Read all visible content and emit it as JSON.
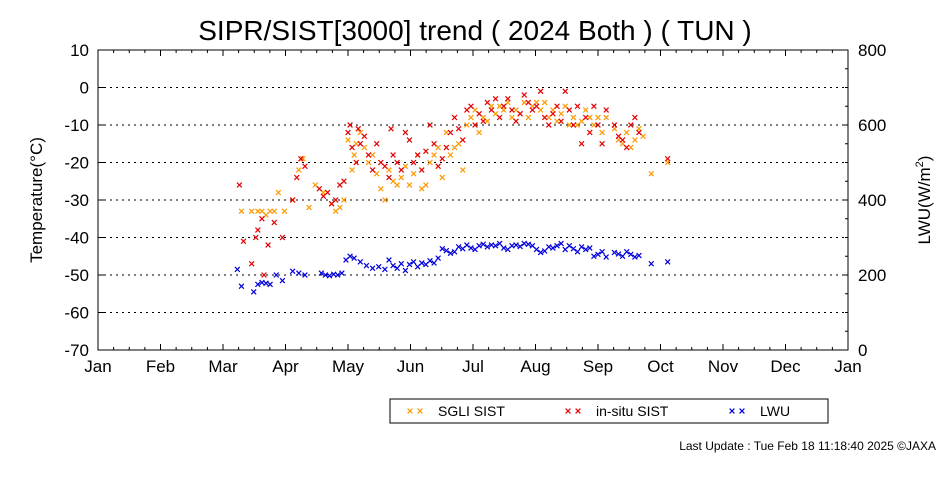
{
  "chart_data": {
    "type": "scatter",
    "title": "SIPR/SIST[3000] trend ( 2024 Both ) ( TUN )",
    "xlabel": "",
    "ylabel": "Temperature(°C)",
    "y2label": "LWU(W/m",
    "y2label_sup": "2",
    "y2label_end": ")",
    "x_ticks": [
      "Jan",
      "Feb",
      "Mar",
      "Apr",
      "May",
      "Jun",
      "Jul",
      "Aug",
      "Sep",
      "Oct",
      "Nov",
      "Dec",
      "Jan"
    ],
    "ylim": [
      -70,
      10
    ],
    "y_ticks": [
      10,
      0,
      -10,
      -20,
      -30,
      -40,
      -50,
      -60,
      -70
    ],
    "y2lim": [
      0,
      800
    ],
    "y2_ticks": [
      800,
      600,
      400,
      200,
      0
    ],
    "grid": "horizontal dotted",
    "legend_position": "bottom",
    "series": [
      {
        "name": "SGLI SIST",
        "axis": "left",
        "color": "#ff9900",
        "points": [
          [
            70,
            -33
          ],
          [
            75,
            -33
          ],
          [
            78,
            -33
          ],
          [
            80,
            -33
          ],
          [
            82,
            -34
          ],
          [
            84,
            -33
          ],
          [
            86,
            -33
          ],
          [
            88,
            -28
          ],
          [
            91,
            -33
          ],
          [
            95,
            -30
          ],
          [
            98,
            -22
          ],
          [
            100,
            -19
          ],
          [
            103,
            -32
          ],
          [
            106,
            -26
          ],
          [
            110,
            -28
          ],
          [
            114,
            -31
          ],
          [
            116,
            -33
          ],
          [
            118,
            -32
          ],
          [
            120,
            -30
          ],
          [
            122,
            -14
          ],
          [
            124,
            -22
          ],
          [
            125,
            -18
          ],
          [
            126,
            -15
          ],
          [
            128,
            -12
          ],
          [
            130,
            -16
          ],
          [
            132,
            -20
          ],
          [
            134,
            -18
          ],
          [
            136,
            -23
          ],
          [
            138,
            -27
          ],
          [
            140,
            -30
          ],
          [
            142,
            -22
          ],
          [
            144,
            -25
          ],
          [
            146,
            -26
          ],
          [
            148,
            -24
          ],
          [
            150,
            -21
          ],
          [
            152,
            -26
          ],
          [
            154,
            -23
          ],
          [
            156,
            -18
          ],
          [
            158,
            -27
          ],
          [
            160,
            -26
          ],
          [
            162,
            -20
          ],
          [
            164,
            -18
          ],
          [
            166,
            -16
          ],
          [
            168,
            -24
          ],
          [
            170,
            -12
          ],
          [
            172,
            -18
          ],
          [
            174,
            -16
          ],
          [
            176,
            -15
          ],
          [
            178,
            -22
          ],
          [
            180,
            -10
          ],
          [
            182,
            -8
          ],
          [
            184,
            -6
          ],
          [
            186,
            -12
          ],
          [
            188,
            -8
          ],
          [
            190,
            -9
          ],
          [
            192,
            -5
          ],
          [
            194,
            -7
          ],
          [
            196,
            -5
          ],
          [
            198,
            -6
          ],
          [
            200,
            -4
          ],
          [
            202,
            -8
          ],
          [
            204,
            -6
          ],
          [
            206,
            -7
          ],
          [
            208,
            -4
          ],
          [
            210,
            -8
          ],
          [
            212,
            -5
          ],
          [
            214,
            -4
          ],
          [
            216,
            -6
          ],
          [
            218,
            -4
          ],
          [
            220,
            -8
          ],
          [
            222,
            -6
          ],
          [
            224,
            -9
          ],
          [
            226,
            -7
          ],
          [
            228,
            -5
          ],
          [
            230,
            -10
          ],
          [
            232,
            -8
          ],
          [
            234,
            -10
          ],
          [
            236,
            -9
          ],
          [
            238,
            -6
          ],
          [
            240,
            -8
          ],
          [
            242,
            -10
          ],
          [
            244,
            -8
          ],
          [
            246,
            -12
          ],
          [
            248,
            -8
          ],
          [
            252,
            -11
          ],
          [
            254,
            -14
          ],
          [
            256,
            -15
          ],
          [
            258,
            -12
          ],
          [
            260,
            -16
          ],
          [
            262,
            -14
          ],
          [
            264,
            -11
          ],
          [
            266,
            -13
          ],
          [
            270,
            -23
          ],
          [
            278,
            -20
          ]
        ]
      },
      {
        "name": "in-situ SIST",
        "axis": "left",
        "color": "#e60000",
        "points": [
          [
            69,
            -26
          ],
          [
            71,
            -41
          ],
          [
            75,
            -47
          ],
          [
            77,
            -40
          ],
          [
            78,
            -38
          ],
          [
            80,
            -35
          ],
          [
            81,
            -50
          ],
          [
            83,
            -42
          ],
          [
            86,
            -36
          ],
          [
            90,
            -40
          ],
          [
            95,
            -30
          ],
          [
            97,
            -24
          ],
          [
            99,
            -19
          ],
          [
            101,
            -21
          ],
          [
            108,
            -27
          ],
          [
            110,
            -29
          ],
          [
            112,
            -28
          ],
          [
            114,
            -31
          ],
          [
            116,
            -30
          ],
          [
            118,
            -26
          ],
          [
            120,
            -25
          ],
          [
            122,
            -12
          ],
          [
            123,
            -10
          ],
          [
            124,
            -16
          ],
          [
            126,
            -20
          ],
          [
            127,
            -11
          ],
          [
            128,
            -15
          ],
          [
            130,
            -13
          ],
          [
            132,
            -18
          ],
          [
            134,
            -22
          ],
          [
            136,
            -15
          ],
          [
            138,
            -20
          ],
          [
            140,
            -21
          ],
          [
            142,
            -24
          ],
          [
            143,
            -11
          ],
          [
            144,
            -18
          ],
          [
            146,
            -20
          ],
          [
            148,
            -22
          ],
          [
            150,
            -12
          ],
          [
            152,
            -14
          ],
          [
            154,
            -20
          ],
          [
            156,
            -18
          ],
          [
            158,
            -22
          ],
          [
            160,
            -17
          ],
          [
            162,
            -10
          ],
          [
            164,
            -15
          ],
          [
            166,
            -21
          ],
          [
            168,
            -19
          ],
          [
            170,
            -16
          ],
          [
            172,
            -12
          ],
          [
            174,
            -8
          ],
          [
            176,
            -11
          ],
          [
            178,
            -14
          ],
          [
            180,
            -6
          ],
          [
            182,
            -5
          ],
          [
            184,
            -10
          ],
          [
            186,
            -7
          ],
          [
            188,
            -9
          ],
          [
            190,
            -4
          ],
          [
            192,
            -6
          ],
          [
            194,
            -3
          ],
          [
            196,
            -8
          ],
          [
            198,
            -5
          ],
          [
            200,
            -3
          ],
          [
            202,
            -6
          ],
          [
            204,
            -9
          ],
          [
            206,
            -7
          ],
          [
            208,
            -2
          ],
          [
            210,
            -4
          ],
          [
            212,
            -6
          ],
          [
            214,
            -5
          ],
          [
            216,
            -1
          ],
          [
            218,
            -8
          ],
          [
            220,
            -10
          ],
          [
            222,
            -7
          ],
          [
            224,
            -5
          ],
          [
            226,
            -9
          ],
          [
            228,
            -1
          ],
          [
            230,
            -6
          ],
          [
            232,
            -10
          ],
          [
            234,
            -5
          ],
          [
            236,
            -15
          ],
          [
            238,
            -8
          ],
          [
            240,
            -12
          ],
          [
            242,
            -5
          ],
          [
            244,
            -10
          ],
          [
            246,
            -15
          ],
          [
            248,
            -6
          ],
          [
            252,
            -10
          ],
          [
            254,
            -13
          ],
          [
            256,
            -14
          ],
          [
            258,
            -16
          ],
          [
            260,
            -10
          ],
          [
            262,
            -8
          ],
          [
            264,
            -12
          ],
          [
            278,
            -19
          ]
        ]
      },
      {
        "name": "LWU",
        "axis": "right",
        "color": "#0000dd",
        "points": [
          [
            68,
            215
          ],
          [
            70,
            170
          ],
          [
            76,
            155
          ],
          [
            78,
            175
          ],
          [
            80,
            180
          ],
          [
            82,
            178
          ],
          [
            84,
            175
          ],
          [
            87,
            200
          ],
          [
            90,
            185
          ],
          [
            95,
            210
          ],
          [
            98,
            205
          ],
          [
            101,
            200
          ],
          [
            109,
            205
          ],
          [
            111,
            200
          ],
          [
            113,
            198
          ],
          [
            115,
            202
          ],
          [
            117,
            200
          ],
          [
            119,
            205
          ],
          [
            121,
            240
          ],
          [
            123,
            250
          ],
          [
            125,
            245
          ],
          [
            128,
            235
          ],
          [
            131,
            225
          ],
          [
            134,
            218
          ],
          [
            137,
            222
          ],
          [
            140,
            215
          ],
          [
            142,
            240
          ],
          [
            144,
            225
          ],
          [
            146,
            218
          ],
          [
            148,
            230
          ],
          [
            150,
            212
          ],
          [
            152,
            228
          ],
          [
            154,
            235
          ],
          [
            156,
            222
          ],
          [
            158,
            232
          ],
          [
            160,
            228
          ],
          [
            162,
            238
          ],
          [
            164,
            232
          ],
          [
            166,
            245
          ],
          [
            168,
            270
          ],
          [
            170,
            265
          ],
          [
            172,
            258
          ],
          [
            174,
            262
          ],
          [
            176,
            275
          ],
          [
            178,
            270
          ],
          [
            180,
            280
          ],
          [
            182,
            272
          ],
          [
            184,
            268
          ],
          [
            186,
            278
          ],
          [
            188,
            282
          ],
          [
            190,
            275
          ],
          [
            192,
            280
          ],
          [
            194,
            278
          ],
          [
            196,
            284
          ],
          [
            198,
            272
          ],
          [
            200,
            268
          ],
          [
            202,
            278
          ],
          [
            204,
            280
          ],
          [
            206,
            276
          ],
          [
            208,
            284
          ],
          [
            210,
            282
          ],
          [
            212,
            278
          ],
          [
            214,
            268
          ],
          [
            216,
            260
          ],
          [
            218,
            264
          ],
          [
            220,
            275
          ],
          [
            222,
            272
          ],
          [
            224,
            278
          ],
          [
            226,
            284
          ],
          [
            228,
            268
          ],
          [
            230,
            278
          ],
          [
            232,
            270
          ],
          [
            234,
            262
          ],
          [
            236,
            275
          ],
          [
            238,
            268
          ],
          [
            240,
            272
          ],
          [
            242,
            250
          ],
          [
            244,
            255
          ],
          [
            246,
            262
          ],
          [
            248,
            248
          ],
          [
            252,
            260
          ],
          [
            254,
            256
          ],
          [
            256,
            250
          ],
          [
            258,
            262
          ],
          [
            260,
            255
          ],
          [
            262,
            248
          ],
          [
            264,
            252
          ],
          [
            270,
            230
          ],
          [
            278,
            235
          ]
        ]
      }
    ]
  },
  "footer": {
    "last_update": "Last Update : Tue Feb 18 11:18:40 2025 ©JAXA"
  }
}
